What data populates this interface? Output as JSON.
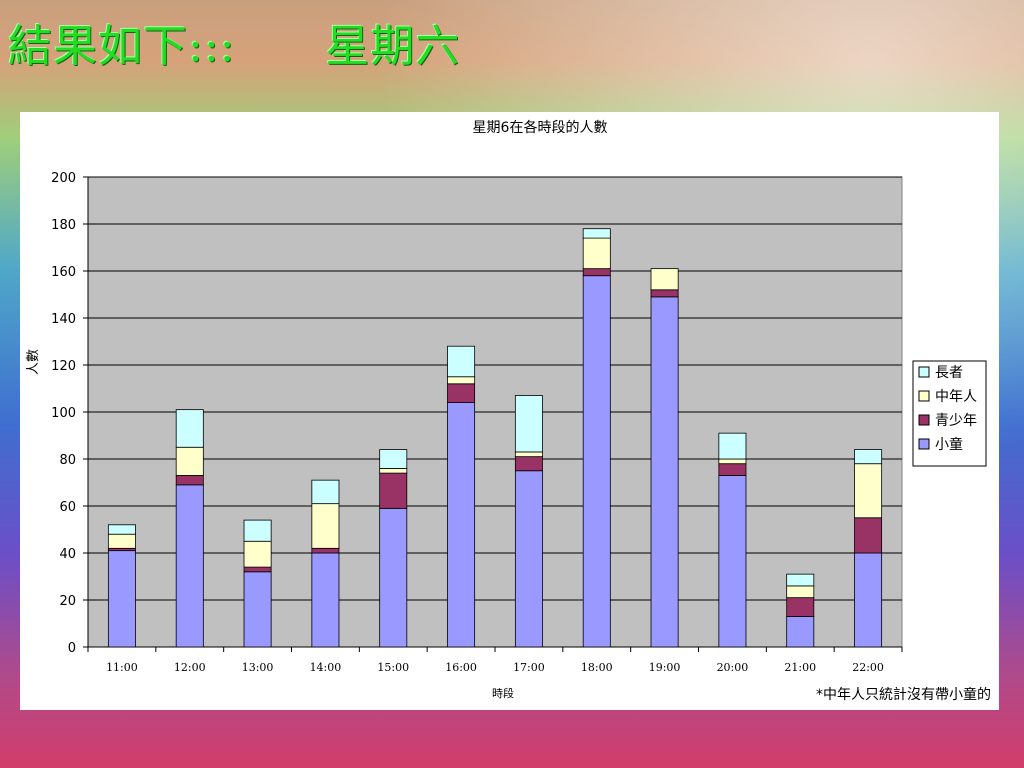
{
  "slide": {
    "title": "結果如下:::",
    "subtitle": "星期六"
  },
  "chart_data": {
    "type": "bar",
    "stacked": true,
    "title": "星期6在各時段的人數",
    "xlabel": "時段",
    "ylabel": "人數",
    "ylim": [
      0,
      200
    ],
    "yticks": [
      0,
      20,
      40,
      60,
      80,
      100,
      120,
      140,
      160,
      180,
      200
    ],
    "grid": true,
    "legend_position": "right",
    "categories": [
      "11:00",
      "12:00",
      "13:00",
      "14:00",
      "15:00",
      "16:00",
      "17:00",
      "18:00",
      "19:00",
      "20:00",
      "21:00",
      "22:00"
    ],
    "series": [
      {
        "name": "小童",
        "color": "#9999ff",
        "values": [
          41,
          69,
          32,
          40,
          59,
          104,
          75,
          158,
          149,
          73,
          13,
          40
        ]
      },
      {
        "name": "青少年",
        "color": "#993366",
        "values": [
          1,
          4,
          2,
          2,
          15,
          8,
          6,
          3,
          3,
          5,
          8,
          15
        ]
      },
      {
        "name": "中年人",
        "color": "#ffffcc",
        "values": [
          6,
          12,
          11,
          19,
          2,
          3,
          2,
          13,
          9,
          2,
          5,
          23
        ]
      },
      {
        "name": "長者",
        "color": "#ccffff",
        "values": [
          4,
          16,
          9,
          10,
          8,
          13,
          24,
          4,
          0,
          11,
          5,
          6
        ]
      }
    ],
    "legend_order": [
      "長者",
      "中年人",
      "青少年",
      "小童"
    ],
    "plot_background": "#c0c0c0",
    "note": "*中年人只統計沒有帶小童的"
  }
}
